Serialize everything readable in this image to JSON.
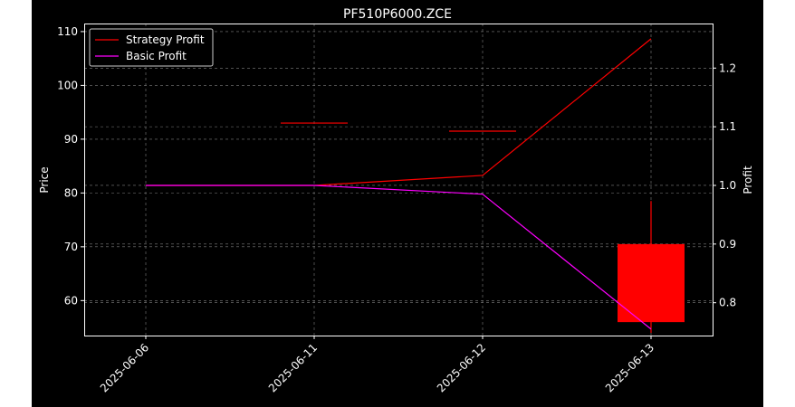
{
  "chart_data": {
    "type": "line",
    "title": "PF510P6000.ZCE",
    "x": [
      "2025-06-06",
      "2025-06-11",
      "2025-06-12",
      "2025-06-13"
    ],
    "xlabel": "",
    "ylabel_left": "Price",
    "ylabel_right": "Profit",
    "ylim_left": [
      53.5,
      111.5
    ],
    "ylim_right": [
      0.744,
      1.276
    ],
    "yticks_left": [
      60,
      70,
      80,
      90,
      100,
      110
    ],
    "yticks_right": [
      0.8,
      0.9,
      1.0,
      1.1,
      1.2
    ],
    "grid": true,
    "legend_position": "top-left",
    "candles": [
      {
        "date": "2025-06-11",
        "open": 93.0,
        "close": 93.0,
        "high": 93.0,
        "low": 93.0
      },
      {
        "date": "2025-06-12",
        "open": 91.5,
        "close": 91.5,
        "high": 91.5,
        "low": 91.5
      },
      {
        "date": "2025-06-13",
        "open": 70.5,
        "close": 56.0,
        "high": 78.5,
        "low": 54.0
      }
    ],
    "series": [
      {
        "name": "Strategy Profit",
        "axis": "right",
        "color": "#ff0000",
        "values": [
          1.0,
          1.0,
          1.017,
          1.25
        ]
      },
      {
        "name": "Basic Profit",
        "axis": "right",
        "color": "#ff00ff",
        "values": [
          1.0,
          1.0,
          0.985,
          0.755
        ]
      }
    ]
  },
  "colors": {
    "candle": "#ff0000",
    "background": "#000000",
    "grid": "#808080",
    "axis": "#ffffff"
  }
}
